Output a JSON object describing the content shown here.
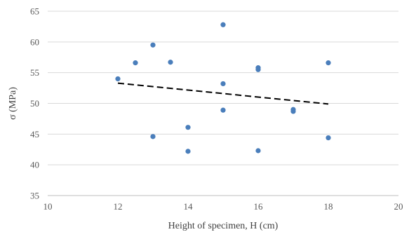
{
  "chart_data": {
    "type": "scatter",
    "title": "",
    "xlabel": "Height of specimen, H (cm)",
    "ylabel": "σ (MPa)",
    "xlim": [
      10,
      20
    ],
    "ylim": [
      35,
      65
    ],
    "xticks": [
      10,
      12,
      14,
      16,
      18,
      20
    ],
    "yticks": [
      35,
      40,
      45,
      50,
      55,
      60,
      65
    ],
    "xtick_labels": [
      "10",
      "12",
      "14",
      "16",
      "18",
      "20"
    ],
    "ytick_labels": [
      "35",
      "40",
      "45",
      "50",
      "55",
      "60",
      "65"
    ],
    "grid": "horizontal",
    "legend": "none",
    "colors": {
      "points": "#4a7ebb",
      "trendline": "#000000",
      "grid": "#d9d9d9",
      "axis": "#bfbfbf"
    },
    "series": [
      {
        "values": [
          {
            "x": 12.0,
            "y": 54.0
          },
          {
            "x": 12.5,
            "y": 56.6
          },
          {
            "x": 13.0,
            "y": 59.5
          },
          {
            "x": 13.0,
            "y": 44.6
          },
          {
            "x": 13.5,
            "y": 56.7
          },
          {
            "x": 14.0,
            "y": 46.1
          },
          {
            "x": 14.0,
            "y": 42.2
          },
          {
            "x": 15.0,
            "y": 62.8
          },
          {
            "x": 15.0,
            "y": 53.2
          },
          {
            "x": 15.0,
            "y": 48.9
          },
          {
            "x": 16.0,
            "y": 55.8
          },
          {
            "x": 16.0,
            "y": 55.5
          },
          {
            "x": 16.0,
            "y": 42.3
          },
          {
            "x": 17.0,
            "y": 49.0
          },
          {
            "x": 17.0,
            "y": 48.7
          },
          {
            "x": 18.0,
            "y": 56.6
          },
          {
            "x": 18.0,
            "y": 44.4
          }
        ]
      }
    ],
    "trendline": {
      "style": "dashed",
      "linear": true,
      "points": [
        {
          "x": 12.0,
          "y": 53.3
        },
        {
          "x": 18.0,
          "y": 49.9
        }
      ]
    }
  }
}
